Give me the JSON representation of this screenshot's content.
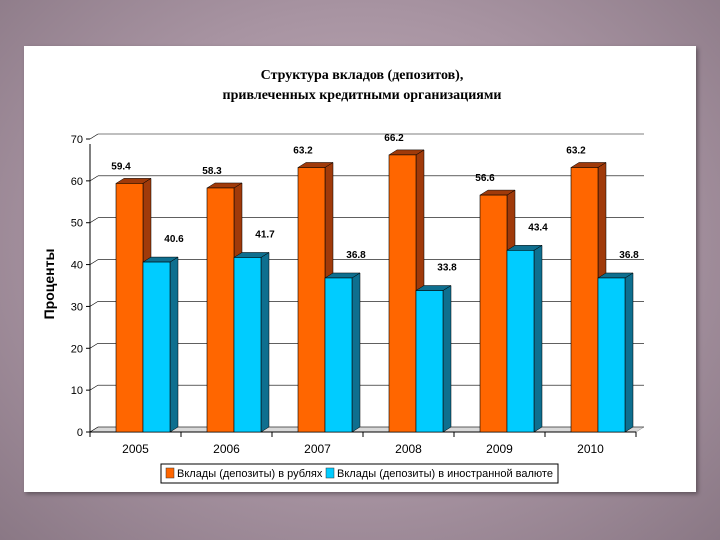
{
  "chart_data": {
    "type": "bar",
    "title": "Структура вкладов (депозитов),",
    "subtitle": "привлеченных кредитными организациями",
    "xlabel": "",
    "ylabel": "Проценты",
    "ylim": [
      0,
      70
    ],
    "yticks": [
      0,
      10,
      20,
      30,
      40,
      50,
      60,
      70
    ],
    "grid": true,
    "legend_position": "bottom",
    "categories": [
      "2005",
      "2006",
      "2007",
      "2008",
      "2009",
      "2010"
    ],
    "series": [
      {
        "name": "Вклады (депозиты) в рублях",
        "color": "#ff6600",
        "side_color": "#a03a0a",
        "values": [
          59.4,
          58.3,
          63.2,
          66.2,
          56.6,
          63.2
        ],
        "labels": [
          "59.4",
          "58.3",
          "63.2",
          "66.2",
          "56.6",
          "63.2"
        ]
      },
      {
        "name": "Вклады (депозиты) в иностранной валюте",
        "color": "#00ccff",
        "side_color": "#0e6f8f",
        "values": [
          40.6,
          41.7,
          36.8,
          33.8,
          43.4,
          36.8
        ],
        "labels": [
          "40.6",
          "41.7",
          "36.8",
          "33.8",
          "43.4",
          "36.8"
        ]
      }
    ]
  }
}
